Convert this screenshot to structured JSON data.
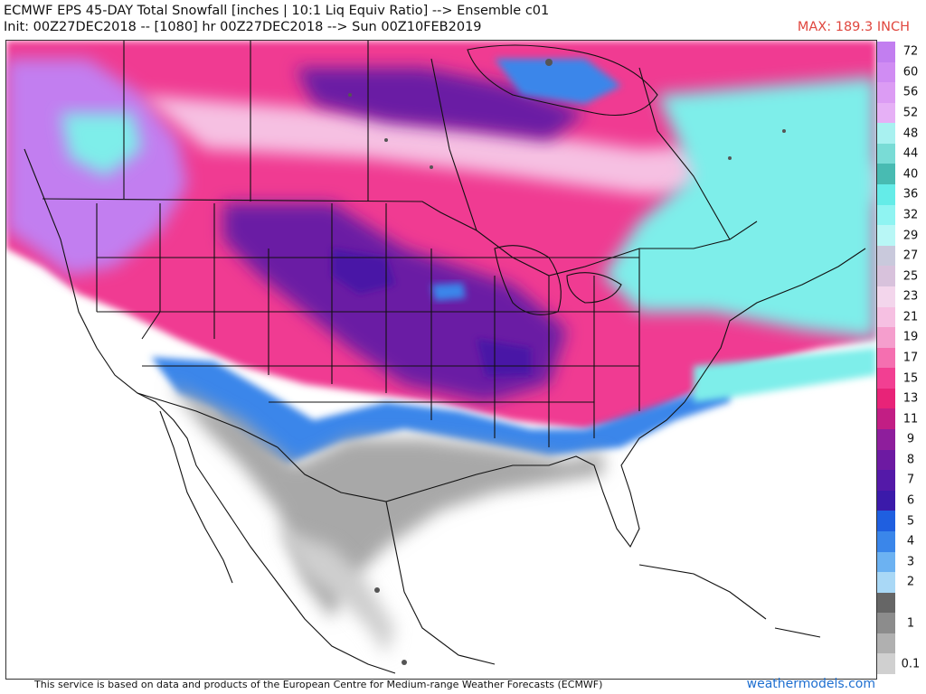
{
  "header": {
    "title": "ECMWF EPS 45-DAY Total Snowfall [inches | 10:1 Liq Equiv Ratio] --> Ensemble c01",
    "init": "Init: 00Z27DEC2018 -- [1080] hr 00Z27DEC2018 --> Sun 00Z10FEB2019",
    "max": "MAX: 189.3 INCH"
  },
  "legend": {
    "items": [
      {
        "label": "72",
        "color": "#c27ef0"
      },
      {
        "label": "60",
        "color": "#d08cf3"
      },
      {
        "label": "56",
        "color": "#dc9cf4"
      },
      {
        "label": "52",
        "color": "#e6b0f6"
      },
      {
        "label": "48",
        "color": "#a8f1f0"
      },
      {
        "label": "44",
        "color": "#79dcd6"
      },
      {
        "label": "40",
        "color": "#48bbb2"
      },
      {
        "label": "36",
        "color": "#64ece8"
      },
      {
        "label": "32",
        "color": "#8ff4f2"
      },
      {
        "label": "29",
        "color": "#b8f7f6"
      },
      {
        "label": "27",
        "color": "#c9c9dc"
      },
      {
        "label": "25",
        "color": "#d8c2dc"
      },
      {
        "label": "23",
        "color": "#f3d6ec"
      },
      {
        "label": "21",
        "color": "#f6c0e2"
      },
      {
        "label": "19",
        "color": "#f59ecd"
      },
      {
        "label": "17",
        "color": "#f56fb0"
      },
      {
        "label": "15",
        "color": "#f23f92"
      },
      {
        "label": "13",
        "color": "#e82378"
      },
      {
        "label": "11",
        "color": "#c21e84"
      },
      {
        "label": "9",
        "color": "#8e1e9c"
      },
      {
        "label": "8",
        "color": "#6d1aa2"
      },
      {
        "label": "7",
        "color": "#5419a8"
      },
      {
        "label": "6",
        "color": "#3b1aaa"
      },
      {
        "label": "5",
        "color": "#1f5fe0"
      },
      {
        "label": "4",
        "color": "#3a86ea"
      },
      {
        "label": "3",
        "color": "#6cb2f2"
      },
      {
        "label": "2",
        "color": "#a9d8f6"
      },
      {
        "label": "",
        "color": "#666666"
      },
      {
        "label": "1",
        "color": "#8c8c8c"
      },
      {
        "label": "",
        "color": "#b0b0b0"
      },
      {
        "label": "0.1",
        "color": "#d0d0d0"
      }
    ]
  },
  "map": {
    "region": "North America",
    "field": "Total Snowfall",
    "colors": {
      "magenta": "#f03a92",
      "purple": "#6b1aa4",
      "deep_purple": "#4a18a6",
      "violet": "#c27ef0",
      "cyan": "#7eeeea",
      "light_pink": "#f6c0e2",
      "blue": "#3a86ea",
      "gray": "#a8a8a8",
      "light_gray": "#cfcfcf",
      "border": "#111111"
    }
  },
  "footer": {
    "attribution": "This service is based on data and products of the European Centre for Medium-range Weather Forecasts (ECMWF)",
    "brand": "weathermodels.com"
  }
}
